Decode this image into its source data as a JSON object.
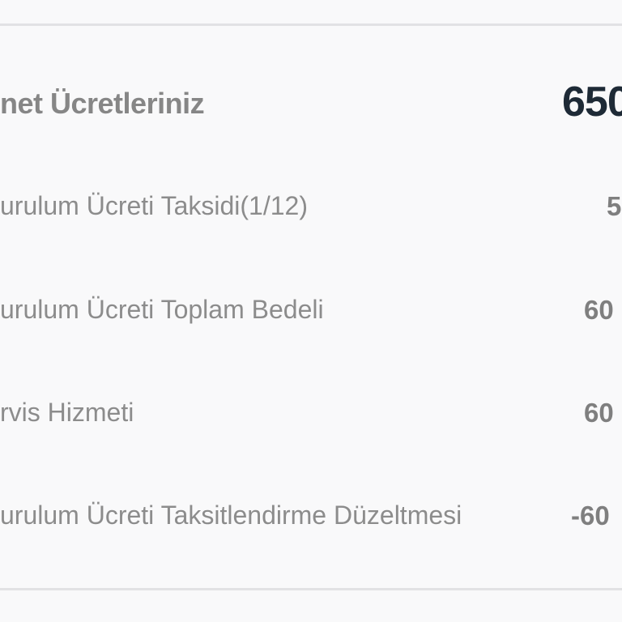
{
  "summary": {
    "title": "net Ücretleriniz",
    "total": "650"
  },
  "rows": [
    {
      "label": "urulum Ücreti Taksidi(1/12)",
      "value": "5"
    },
    {
      "label": "urulum Ücreti Toplam Bedeli",
      "value": "60"
    },
    {
      "label": "rvis Hizmeti",
      "value": "60"
    },
    {
      "label": "urulum Ücreti Taksitlendirme Düzeltmesi",
      "value": "-60"
    }
  ]
}
